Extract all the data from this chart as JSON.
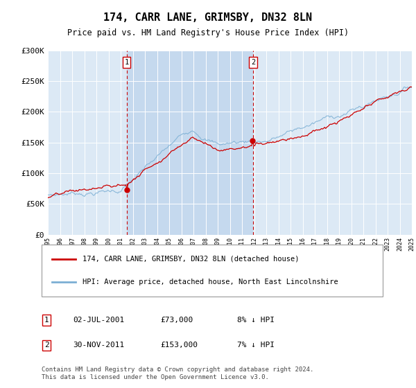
{
  "title": "174, CARR LANE, GRIMSBY, DN32 8LN",
  "subtitle": "Price paid vs. HM Land Registry's House Price Index (HPI)",
  "bg_color": "#dce9f5",
  "shade_color": "#c5d9ee",
  "ylabel": "",
  "ylim": [
    0,
    300000
  ],
  "yticks": [
    0,
    50000,
    100000,
    150000,
    200000,
    250000,
    300000
  ],
  "sale1_date": "02-JUL-2001",
  "sale1_price": 73000,
  "sale1_hpi": "8% ↓ HPI",
  "sale1_year": 2001.5,
  "sale2_date": "30-NOV-2011",
  "sale2_price": 153000,
  "sale2_hpi": "7% ↓ HPI",
  "sale2_year": 2011.92,
  "red_line_color": "#cc0000",
  "blue_line_color": "#7bafd4",
  "vline_color": "#cc0000",
  "legend_label1": "174, CARR LANE, GRIMSBY, DN32 8LN (detached house)",
  "legend_label2": "HPI: Average price, detached house, North East Lincolnshire",
  "footer": "Contains HM Land Registry data © Crown copyright and database right 2024.\nThis data is licensed under the Open Government Licence v3.0.",
  "xstart": 1995,
  "xend": 2025
}
